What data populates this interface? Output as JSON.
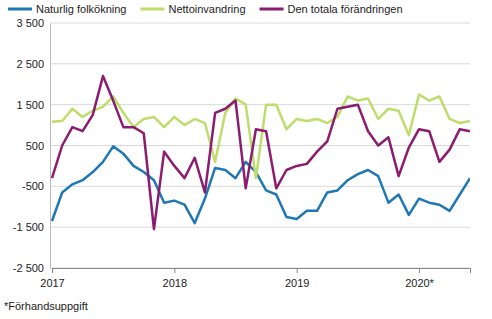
{
  "chart_data": {
    "type": "line",
    "categories": [
      "2017",
      null,
      null,
      null,
      null,
      null,
      null,
      null,
      null,
      null,
      null,
      null,
      "2018",
      null,
      null,
      null,
      null,
      null,
      null,
      null,
      null,
      null,
      null,
      null,
      "2019",
      null,
      null,
      null,
      null,
      null,
      null,
      null,
      null,
      null,
      null,
      null,
      "2020*",
      null,
      null,
      null,
      null,
      null
    ],
    "series": [
      {
        "name": "Naturlig folkökning",
        "color": "#1f78b4",
        "values": [
          -1350,
          -650,
          -450,
          -350,
          -150,
          100,
          480,
          300,
          0,
          -150,
          -350,
          -900,
          -850,
          -950,
          -1400,
          -800,
          -50,
          -100,
          -300,
          100,
          -150,
          -600,
          -700,
          -1250,
          -1300,
          -1100,
          -1100,
          -650,
          -600,
          -350,
          -200,
          -100,
          -250,
          -900,
          -700,
          -1200,
          -800,
          -900,
          -950,
          -1100,
          -700,
          -300
        ]
      },
      {
        "name": "Nettoinvandring",
        "color": "#bedd6a",
        "values": [
          1080,
          1100,
          1400,
          1200,
          1350,
          1450,
          1700,
          1300,
          950,
          1150,
          1200,
          950,
          1200,
          1000,
          1150,
          1050,
          100,
          1300,
          1650,
          1500,
          -300,
          1500,
          1500,
          900,
          1150,
          1100,
          1150,
          1050,
          1200,
          1700,
          1600,
          1650,
          1150,
          1400,
          1350,
          750,
          1750,
          1600,
          1700,
          1150,
          1050,
          1100
        ]
      },
      {
        "name": "Den totala förändringen",
        "color": "#8c1c6f",
        "values": [
          -300,
          500,
          950,
          850,
          1250,
          2200,
          1600,
          950,
          950,
          800,
          -1550,
          350,
          0,
          -300,
          200,
          -650,
          1300,
          1400,
          1600,
          -550,
          900,
          850,
          -550,
          -100,
          0,
          50,
          350,
          600,
          1400,
          1450,
          1500,
          850,
          500,
          700,
          -250,
          450,
          900,
          850,
          100,
          400,
          900,
          850
        ]
      }
    ],
    "ylim": [
      -2500,
      3500
    ],
    "yticks": [
      {
        "value": -2500,
        "label": "-2 500"
      },
      {
        "value": -1500,
        "label": "-1 500"
      },
      -500,
      500,
      {
        "value": 1500,
        "label": "1 500"
      },
      {
        "value": 2500,
        "label": "2 500"
      },
      {
        "value": 3500,
        "label": "3 500"
      }
    ],
    "grid": true,
    "legend": "top",
    "annotations": [
      "*Förhandsuppgift"
    ]
  }
}
